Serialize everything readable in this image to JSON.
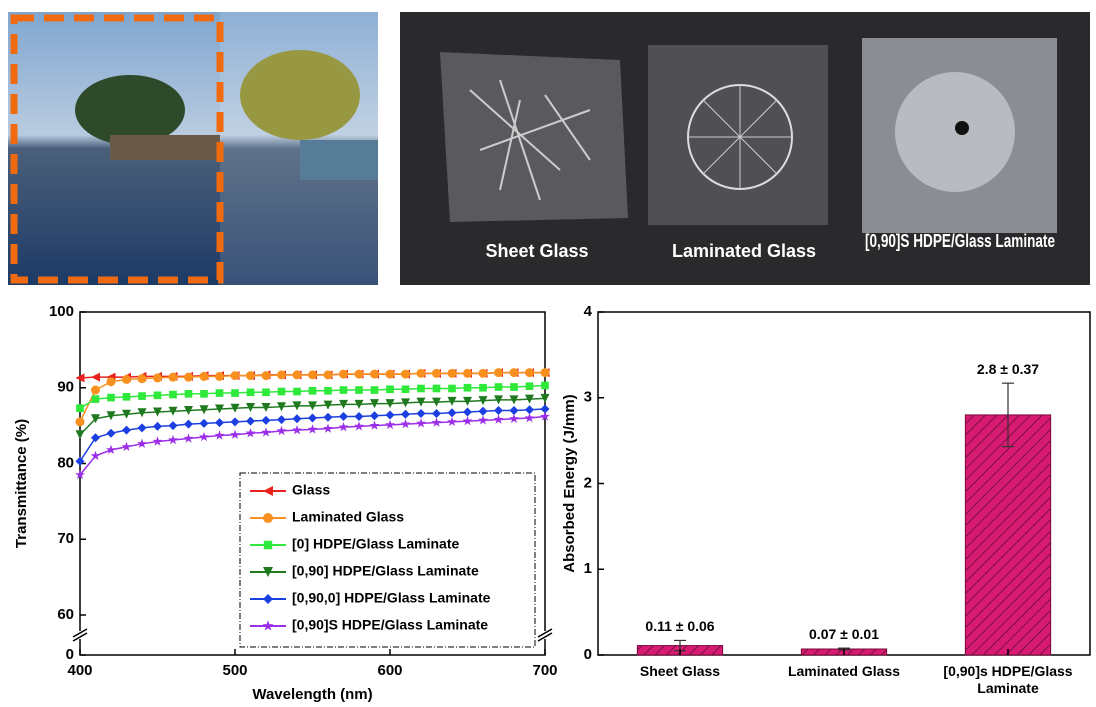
{
  "photos": {
    "labels": [
      "Sheet Glass",
      "Laminated Glass",
      "[0,90]S HDPE/Glass Laminate"
    ]
  },
  "chart_data": [
    {
      "type": "line",
      "xlabel": "Wavelength (nm)",
      "ylabel": "Transmittance (%)",
      "x": [
        400,
        410,
        420,
        430,
        440,
        450,
        460,
        470,
        480,
        490,
        500,
        510,
        520,
        530,
        540,
        550,
        560,
        570,
        580,
        590,
        600,
        610,
        620,
        630,
        640,
        650,
        660,
        670,
        680,
        690,
        700
      ],
      "xlim": [
        400,
        700
      ],
      "xticks": [
        400,
        500,
        600,
        700
      ],
      "ylim": [
        0,
        100
      ],
      "yticks": [
        0,
        60,
        70,
        80,
        90,
        100
      ],
      "axis_break": [
        0,
        60
      ],
      "legend": "lower right",
      "series": [
        {
          "name": "Glass",
          "color": "#e8221b",
          "marker": "triangle-left",
          "values": [
            91.3,
            91.4,
            91.4,
            91.4,
            91.5,
            91.5,
            91.5,
            91.5,
            91.6,
            91.6,
            91.6,
            91.6,
            91.7,
            91.7,
            91.7,
            91.7,
            91.7,
            91.8,
            91.8,
            91.8,
            91.8,
            91.8,
            91.9,
            91.9,
            91.9,
            91.9,
            91.9,
            92.0,
            92.0,
            92.0,
            92.0
          ]
        },
        {
          "name": "Laminated Glass",
          "color": "#f7901e",
          "marker": "circle",
          "values": [
            85.5,
            89.7,
            90.8,
            91.1,
            91.2,
            91.3,
            91.4,
            91.4,
            91.5,
            91.5,
            91.6,
            91.6,
            91.6,
            91.7,
            91.7,
            91.7,
            91.7,
            91.8,
            91.8,
            91.8,
            91.8,
            91.8,
            91.9,
            91.9,
            91.9,
            91.9,
            91.9,
            92.0,
            92.0,
            92.0,
            92.0
          ]
        },
        {
          "name": "[0] HDPE/Glass Laminate",
          "color": "#2ee83a",
          "marker": "square",
          "values": [
            87.3,
            88.5,
            88.7,
            88.8,
            88.9,
            89.0,
            89.1,
            89.2,
            89.2,
            89.3,
            89.3,
            89.4,
            89.4,
            89.5,
            89.5,
            89.6,
            89.6,
            89.7,
            89.7,
            89.7,
            89.8,
            89.8,
            89.9,
            89.9,
            89.9,
            90.0,
            90.0,
            90.1,
            90.1,
            90.2,
            90.3
          ]
        },
        {
          "name": "[0,90] HDPE/Glass Laminate",
          "color": "#1f7a1f",
          "marker": "triangle-down",
          "values": [
            83.8,
            85.9,
            86.3,
            86.5,
            86.7,
            86.8,
            86.9,
            87.0,
            87.1,
            87.2,
            87.3,
            87.4,
            87.4,
            87.5,
            87.6,
            87.6,
            87.7,
            87.8,
            87.8,
            87.9,
            87.9,
            88.0,
            88.1,
            88.1,
            88.2,
            88.2,
            88.3,
            88.4,
            88.4,
            88.5,
            88.6
          ]
        },
        {
          "name": "[0,90,0] HDPE/Glass Laminate",
          "color": "#1b3fe0",
          "marker": "diamond",
          "values": [
            80.3,
            83.4,
            84.0,
            84.4,
            84.7,
            84.9,
            85.0,
            85.2,
            85.3,
            85.4,
            85.5,
            85.6,
            85.7,
            85.8,
            85.9,
            86.0,
            86.1,
            86.2,
            86.2,
            86.3,
            86.4,
            86.5,
            86.6,
            86.6,
            86.7,
            86.8,
            86.9,
            87.0,
            87.0,
            87.1,
            87.2
          ]
        },
        {
          "name": "[0,90]S HDPE/Glass Laminate",
          "color": "#9b2ee8",
          "marker": "star",
          "values": [
            78.5,
            81.0,
            81.8,
            82.2,
            82.6,
            82.9,
            83.1,
            83.3,
            83.5,
            83.7,
            83.8,
            84.0,
            84.1,
            84.3,
            84.4,
            84.5,
            84.6,
            84.8,
            84.9,
            85.0,
            85.1,
            85.2,
            85.3,
            85.4,
            85.5,
            85.6,
            85.7,
            85.8,
            85.9,
            86.0,
            86.2
          ]
        }
      ]
    },
    {
      "type": "bar",
      "ylabel": "Absorbed Energy (J/mm)",
      "categories": [
        "Sheet Glass",
        "Laminated Glass",
        "[0,90]s HDPE/Glass Laminate"
      ],
      "values": [
        0.11,
        0.07,
        2.8
      ],
      "errors": [
        0.06,
        0.01,
        0.37
      ],
      "value_labels": [
        "0.11 ± 0.06",
        "0.07 ± 0.01",
        "2.8 ± 0.37"
      ],
      "color": "#d81b72",
      "hatch": true,
      "ylim": [
        0,
        4
      ],
      "yticks": [
        0,
        1,
        2,
        3,
        4
      ]
    }
  ]
}
